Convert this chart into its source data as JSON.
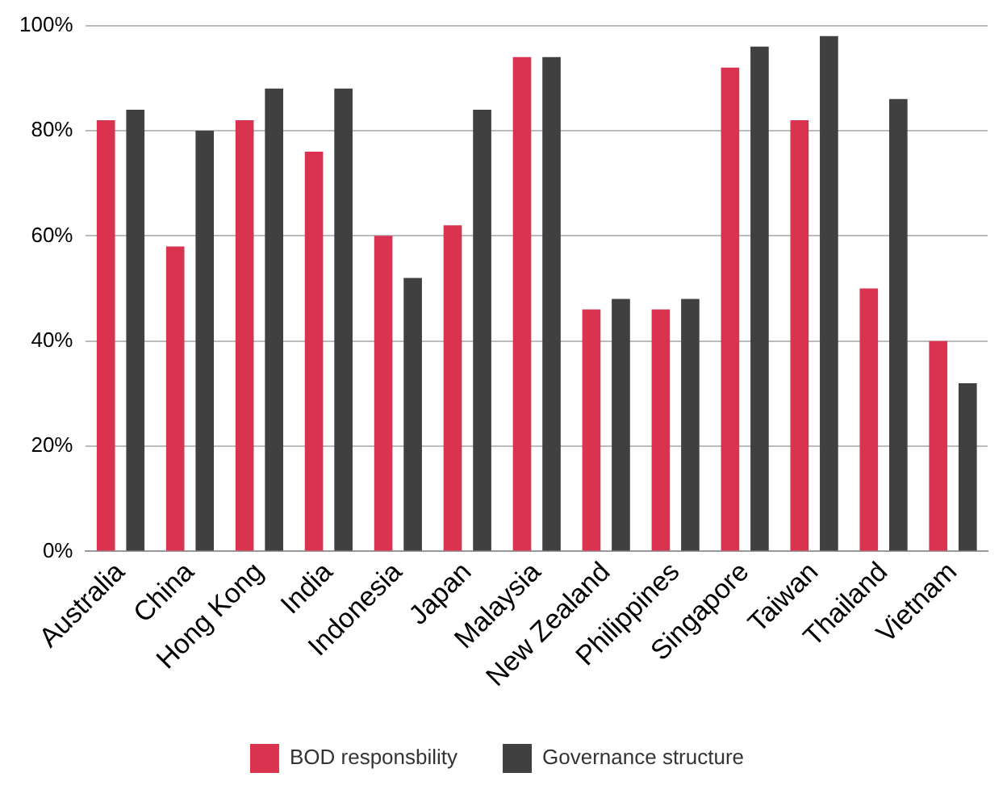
{
  "chart_data": {
    "type": "bar",
    "categories": [
      "Australia",
      "China",
      "Hong Kong",
      "India",
      "Indonesia",
      "Japan",
      "Malaysia",
      "New Zealand",
      "Philippines",
      "Singapore",
      "Taiwan",
      "Thailand",
      "Vietnam"
    ],
    "series": [
      {
        "name": "BOD responsbility",
        "color": "#d9334f",
        "values": [
          82,
          58,
          82,
          76,
          60,
          62,
          94,
          46,
          46,
          92,
          82,
          50,
          40
        ]
      },
      {
        "name": "Governance structure",
        "color": "#404040",
        "values": [
          84,
          80,
          88,
          88,
          52,
          84,
          94,
          48,
          48,
          96,
          98,
          86,
          32
        ]
      }
    ],
    "ylim": [
      0,
      100
    ],
    "yticks": [
      {
        "value": 0,
        "label": "0%"
      },
      {
        "value": 20,
        "label": "20%"
      },
      {
        "value": 40,
        "label": "40%"
      },
      {
        "value": 60,
        "label": "60%"
      },
      {
        "value": 80,
        "label": "80%"
      },
      {
        "value": 100,
        "label": "100%"
      }
    ],
    "grid": "y",
    "legend": "bottom"
  }
}
